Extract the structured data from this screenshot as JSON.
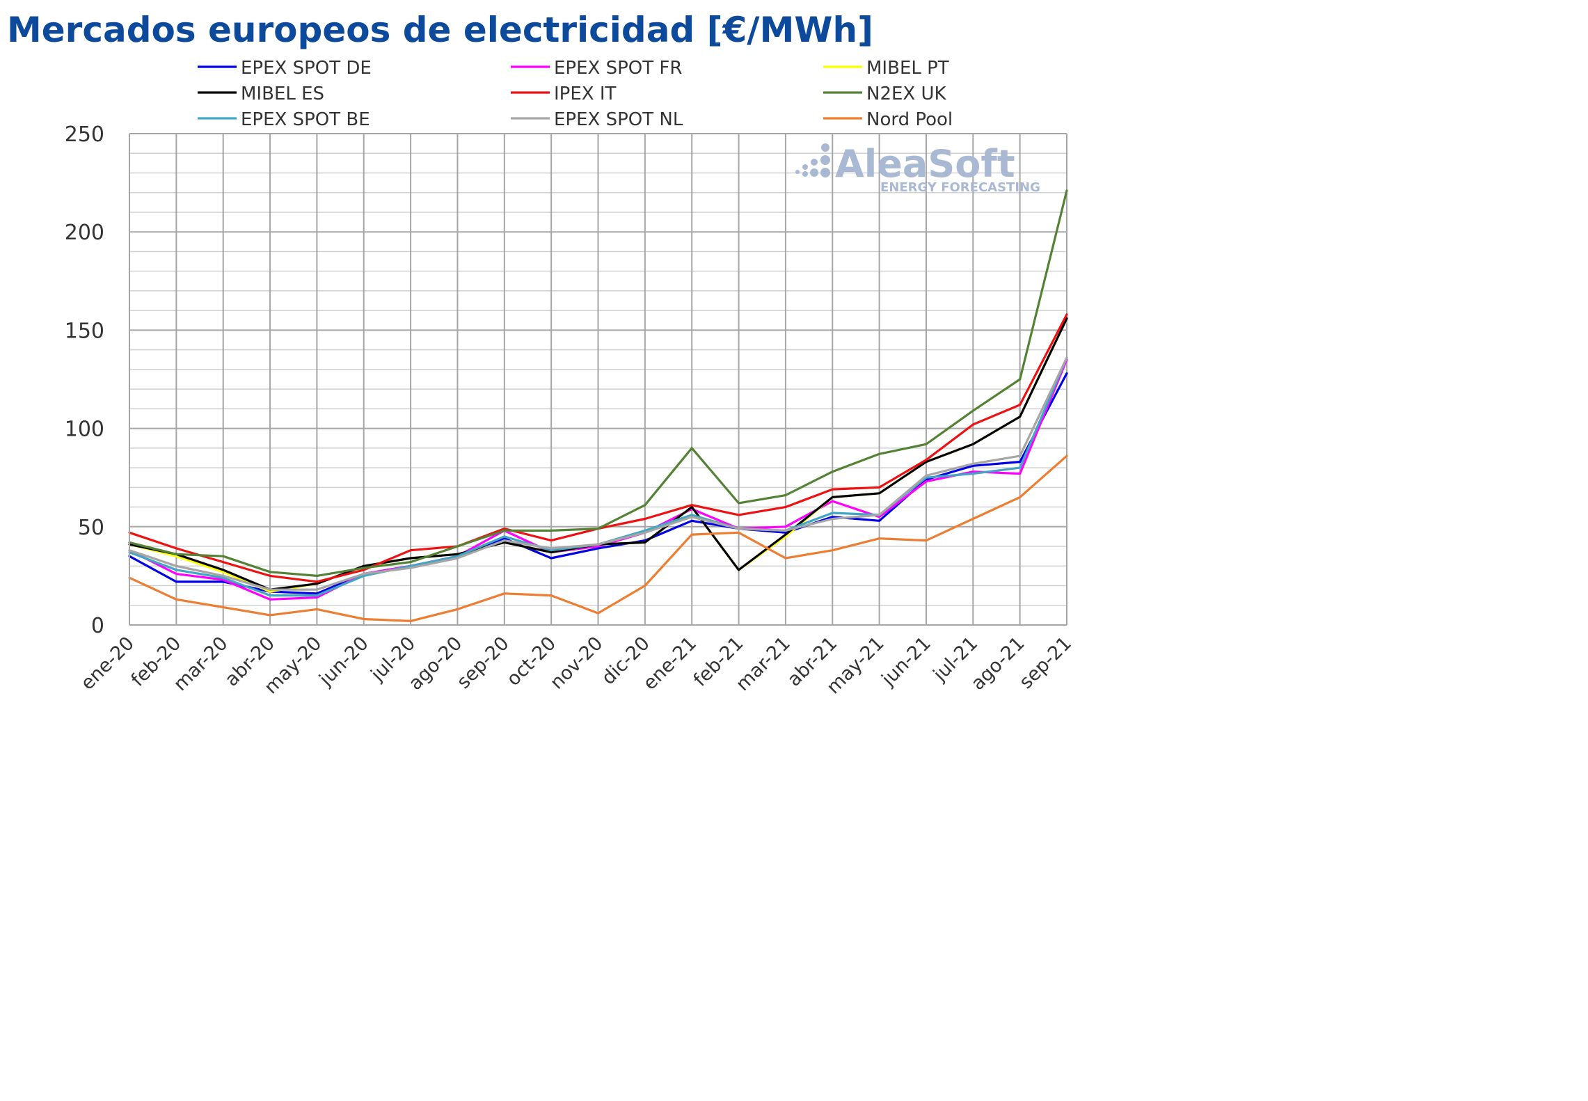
{
  "chart_data": {
    "type": "line",
    "title": "Mercados europeos de electricidad [€/MWh]",
    "xlabel": "",
    "ylabel": "",
    "ylim": [
      0,
      250
    ],
    "yticks": [
      0,
      50,
      100,
      150,
      200,
      250
    ],
    "grid": true,
    "legend_position": "top",
    "categories": [
      "ene-20",
      "feb-20",
      "mar-20",
      "abr-20",
      "may-20",
      "jun-20",
      "jul-20",
      "ago-20",
      "sep-20",
      "oct-20",
      "nov-20",
      "dic-20",
      "ene-21",
      "feb-21",
      "mar-21",
      "abr-21",
      "may-21",
      "jun-21",
      "jul-21",
      "ago-21",
      "sep-21"
    ],
    "series": [
      {
        "name": "EPEX SPOT DE",
        "color": "#0000e6",
        "values": [
          35,
          22,
          22,
          17,
          16,
          26,
          30,
          35,
          44,
          34,
          39,
          43,
          53,
          49,
          47,
          55,
          53,
          74,
          81,
          83,
          128
        ]
      },
      {
        "name": "EPEX SPOT FR",
        "color": "#ff00ff",
        "values": [
          38,
          26,
          23,
          13,
          14,
          26,
          30,
          35,
          48,
          37,
          40,
          47,
          59,
          49,
          50,
          63,
          55,
          73,
          78,
          77,
          135
        ]
      },
      {
        "name": "MIBEL PT",
        "color": "#ffff00",
        "values": [
          41,
          35,
          27,
          17,
          21,
          30,
          34,
          36,
          42,
          37,
          41,
          42,
          60,
          28,
          45,
          65,
          67,
          83,
          92,
          106,
          156
        ]
      },
      {
        "name": "MIBEL ES",
        "color": "#000000",
        "values": [
          41,
          36,
          28,
          18,
          21,
          30,
          34,
          36,
          42,
          37,
          41,
          42,
          60,
          28,
          46,
          65,
          67,
          83,
          92,
          106,
          156
        ]
      },
      {
        "name": "IPEX IT",
        "color": "#ee1111",
        "values": [
          47,
          39,
          32,
          25,
          22,
          28,
          38,
          40,
          49,
          43,
          49,
          54,
          61,
          56,
          60,
          69,
          70,
          84,
          102,
          112,
          158
        ]
      },
      {
        "name": "N2EX UK",
        "color": "#548235",
        "values": [
          42,
          36,
          35,
          27,
          25,
          29,
          32,
          40,
          48,
          48,
          49,
          61,
          90,
          62,
          66,
          78,
          87,
          92,
          109,
          125,
          221
        ]
      },
      {
        "name": "EPEX SPOT BE",
        "color": "#41a6c4",
        "values": [
          37,
          28,
          24,
          15,
          15,
          25,
          30,
          35,
          45,
          38,
          41,
          48,
          56,
          49,
          48,
          57,
          56,
          75,
          77,
          80,
          136
        ]
      },
      {
        "name": "EPEX SPOT NL",
        "color": "#a6a6a6",
        "values": [
          38,
          30,
          25,
          18,
          18,
          26,
          29,
          34,
          43,
          39,
          41,
          47,
          55,
          49,
          48,
          54,
          56,
          76,
          82,
          86,
          136
        ]
      },
      {
        "name": "Nord Pool",
        "color": "#ed7d31",
        "values": [
          24,
          13,
          9,
          5,
          8,
          3,
          2,
          8,
          16,
          15,
          6,
          20,
          46,
          47,
          34,
          38,
          44,
          43,
          54,
          65,
          86
        ]
      }
    ]
  },
  "watermark": {
    "brand": "AleaSoft",
    "tagline": "ENERGY FORECASTING",
    "color": "#aab9d3"
  }
}
